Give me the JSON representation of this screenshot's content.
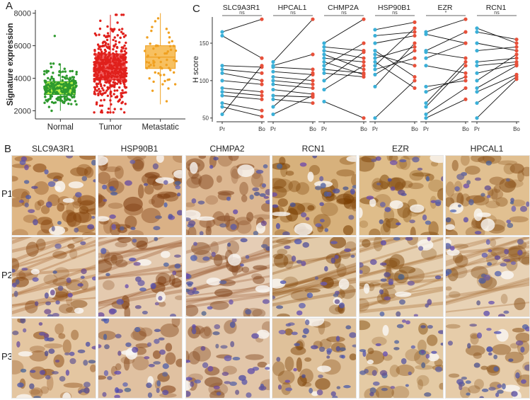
{
  "panels": {
    "a": "A",
    "b": "B",
    "c": "C"
  },
  "chart_data": [
    {
      "type": "box",
      "ylabel": "Signature expression",
      "categories": [
        "Normal",
        "Tumor",
        "Metastatic"
      ],
      "ylim": [
        1500,
        8200
      ],
      "yticks": [
        2000,
        4000,
        6000,
        8000
      ],
      "boxes": [
        {
          "name": "Normal",
          "q1": 3000,
          "median": 3350,
          "q3": 3800,
          "whisker_low": 2000,
          "whisker_high": 4900,
          "outliers_high": [
            6600
          ],
          "n_points": 220,
          "color": "#2e9a2e",
          "fill": "#b9f24a"
        },
        {
          "name": "Tumor",
          "q1": 3900,
          "median": 4600,
          "q3": 5500,
          "whisker_low": 1900,
          "whisker_high": 7900,
          "outliers_high": [],
          "n_points": 480,
          "color": "#e0201c",
          "fill": "#f06060"
        },
        {
          "name": "Metastatic",
          "q1": 4600,
          "median": 5300,
          "q3": 6000,
          "whisker_low": 2400,
          "whisker_high": 8000,
          "outliers_high": [],
          "n_points": 60,
          "color": "#f0a020",
          "fill": "#f7c060"
        }
      ]
    },
    {
      "type": "paired",
      "ylabel": "H score",
      "ylim": [
        45,
        185
      ],
      "yticks": [
        50,
        100,
        150
      ],
      "xlabels": [
        "Pr",
        "Bo"
      ],
      "pr_color": "#3bb0d8",
      "bo_color": "#e8503a",
      "groups": [
        {
          "name": "SLC9A3R1",
          "sig": "ns",
          "pairs": [
            [
              165,
              182
            ],
            [
              160,
              130
            ],
            [
              120,
              118
            ],
            [
              115,
              110
            ],
            [
              110,
              100
            ],
            [
              100,
              95
            ],
            [
              90,
              85
            ],
            [
              85,
              80
            ],
            [
              80,
              75
            ],
            [
              70,
              60
            ],
            [
              65,
              52
            ],
            [
              55,
              120
            ]
          ]
        },
        {
          "name": "HPCAL1",
          "sig": "ns",
          "pairs": [
            [
              125,
              182
            ],
            [
              120,
              135
            ],
            [
              118,
              115
            ],
            [
              112,
              108
            ],
            [
              105,
              100
            ],
            [
              100,
              95
            ],
            [
              95,
              90
            ],
            [
              88,
              82
            ],
            [
              80,
              78
            ],
            [
              75,
              70
            ],
            [
              65,
              110
            ],
            [
              55,
              80
            ]
          ]
        },
        {
          "name": "CHMP2A",
          "sig": "ns",
          "pairs": [
            [
              150,
              182
            ],
            [
              145,
              140
            ],
            [
              140,
              130
            ],
            [
              135,
              115
            ],
            [
              130,
              125
            ],
            [
              125,
              108
            ],
            [
              120,
              150
            ],
            [
              115,
              110
            ],
            [
              110,
              105
            ],
            [
              100,
              138
            ],
            [
              88,
              120
            ],
            [
              72,
              50
            ]
          ]
        },
        {
          "name": "HSP90B1",
          "sig": "ns",
          "pairs": [
            [
              168,
              178
            ],
            [
              160,
              165
            ],
            [
              150,
              160
            ],
            [
              140,
              105
            ],
            [
              135,
              120
            ],
            [
              130,
              145
            ],
            [
              125,
              90
            ],
            [
              120,
              170
            ],
            [
              115,
              130
            ],
            [
              108,
              140
            ],
            [
              92,
              150
            ],
            [
              50,
              100
            ]
          ]
        },
        {
          "name": "EZR",
          "sig": "*",
          "pairs": [
            [
              165,
              182
            ],
            [
              162,
              150
            ],
            [
              140,
              165
            ],
            [
              138,
              130
            ],
            [
              130,
              150
            ],
            [
              120,
              110
            ],
            [
              92,
              100
            ],
            [
              85,
              105
            ],
            [
              70,
              125
            ],
            [
              65,
              120
            ],
            [
              55,
              90
            ],
            [
              50,
              75
            ]
          ]
        },
        {
          "name": "RCN1",
          "sig": "ns",
          "pairs": [
            [
              170,
              150
            ],
            [
              165,
              155
            ],
            [
              150,
              140
            ],
            [
              140,
              145
            ],
            [
              125,
              130
            ],
            [
              120,
              125
            ],
            [
              110,
              122
            ],
            [
              100,
              135
            ],
            [
              90,
              120
            ],
            [
              85,
              108
            ],
            [
              70,
              105
            ],
            [
              50,
              102
            ]
          ]
        }
      ]
    }
  ],
  "ihc": {
    "genes": [
      "SLC9A3R1",
      "HSP90B1",
      "CHMPA2",
      "RCN1",
      "EZR",
      "HPCAL1"
    ],
    "patients": [
      "P1",
      "P2",
      "P3"
    ]
  }
}
